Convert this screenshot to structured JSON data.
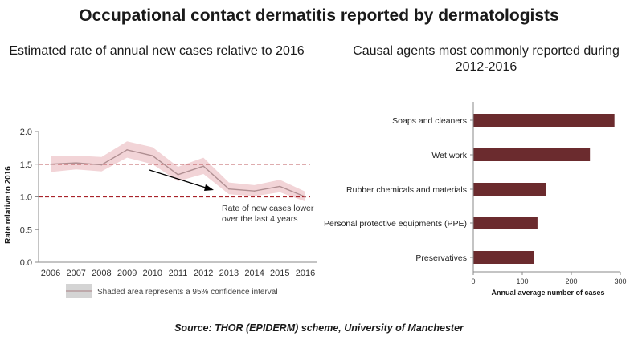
{
  "title": "Occupational contact dermatitis reported by dermatologists",
  "source": "Source: THOR (EPIDERM) scheme, University of Manchester",
  "colors": {
    "line": "#b08f92",
    "band": "#f2d4d7",
    "refline": "#a8232a",
    "bar": "#6b2b2e",
    "axis": "#8a8a8a",
    "legend_swatch": "#d4d4d4"
  },
  "chart_data": [
    {
      "type": "line",
      "title": "Estimated rate of annual new cases relative to 2016",
      "ylabel": "Rate relative to 2016",
      "xlabel": "",
      "x": [
        "2006",
        "2007",
        "2008",
        "2009",
        "2010",
        "2011",
        "2012",
        "2013",
        "2014",
        "2015",
        "2016"
      ],
      "ylim": [
        0,
        2.0
      ],
      "yticks": [
        "0.0",
        "0.5",
        "1.0",
        "1.5",
        "2.0"
      ],
      "series": [
        {
          "values": [
            1.5,
            1.52,
            1.49,
            1.72,
            1.63,
            1.34,
            1.47,
            1.12,
            1.09,
            1.16,
            1.0
          ],
          "ci_lower": [
            1.38,
            1.42,
            1.39,
            1.6,
            1.5,
            1.24,
            1.35,
            1.04,
            1.01,
            1.07,
            0.93
          ],
          "ci_upper": [
            1.63,
            1.63,
            1.61,
            1.85,
            1.76,
            1.46,
            1.6,
            1.22,
            1.18,
            1.26,
            1.08
          ]
        }
      ],
      "reference_lines": [
        1.5,
        1.0
      ],
      "annotation": "Rate of new cases lower over the last 4 years",
      "legend": "Shaded area represents a 95% confidence interval",
      "grid": false
    },
    {
      "type": "bar",
      "orientation": "horizontal",
      "title": "Causal agents most commonly reported during 2012-2016",
      "xlabel": "Annual average number of cases",
      "categories": [
        "Soaps and cleaners",
        "Wet work",
        "Rubber chemicals and materials",
        "Personal protective equipments (PPE)",
        "Preservatives"
      ],
      "values": [
        288,
        238,
        148,
        131,
        124
      ],
      "xlim": [
        0,
        300
      ],
      "xticks": [
        "0",
        "100",
        "200",
        "300"
      ],
      "grid": false
    }
  ]
}
